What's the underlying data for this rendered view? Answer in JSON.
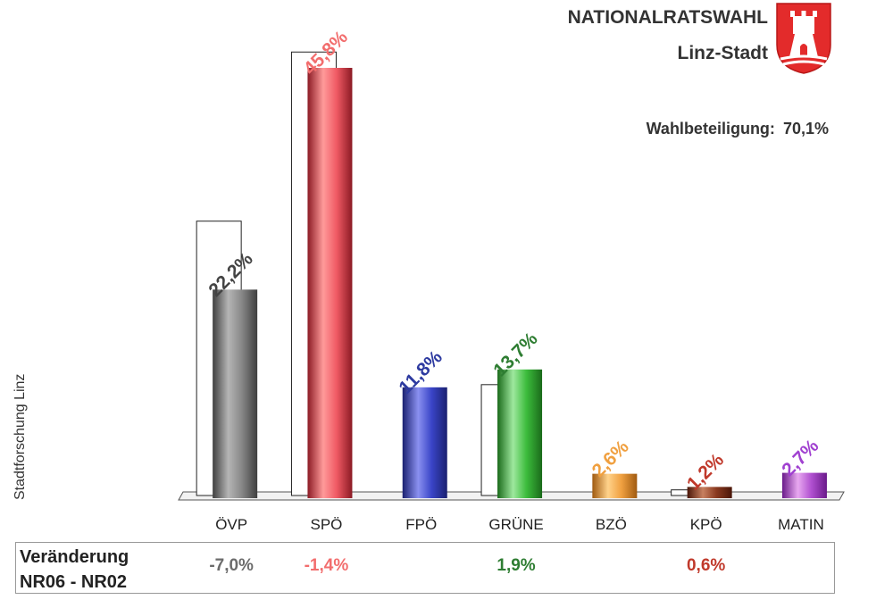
{
  "header": {
    "title": "NATIONALRATSWAHL",
    "subtitle": "Linz-Stadt",
    "turnout_label": "Wahlbeteiligung:",
    "turnout_value": "70,1%"
  },
  "source_label": "Stadtforschung Linz",
  "change": {
    "label_line1": "Veränderung",
    "label_line2": "NR06 - NR02",
    "values": [
      {
        "party": "ÖVP",
        "text": "-7,0%",
        "color": "#6b6b6b"
      },
      {
        "party": "SPÖ",
        "text": "-1,4%",
        "color": "#f26d6d"
      },
      {
        "party": "FPÖ",
        "text": "",
        "color": "#2d3aa0"
      },
      {
        "party": "GRÜNE",
        "text": "1,9%",
        "color": "#2e7d32"
      },
      {
        "party": "BZÖ",
        "text": "",
        "color": "#f0a040"
      },
      {
        "party": "KPÖ",
        "text": "0,6%",
        "color": "#c0392b"
      },
      {
        "party": "MATIN",
        "text": "",
        "color": "#a040d0"
      }
    ]
  },
  "chart_data": {
    "type": "bar",
    "categories": [
      "ÖVP",
      "SPÖ",
      "FPÖ",
      "GRÜNE",
      "BZÖ",
      "KPÖ",
      "MATIN"
    ],
    "series": [
      {
        "values": [
          22.2,
          45.8,
          11.8,
          13.7,
          2.6,
          1.2,
          2.7
        ]
      },
      {
        "values": [
          29.2,
          47.2,
          null,
          11.8,
          null,
          0.6,
          null
        ]
      }
    ],
    "value_labels": [
      "22,2%",
      "45,8%",
      "11,8%",
      "13,7%",
      "2,6%",
      "1,2%",
      "2,7%"
    ],
    "colors": [
      {
        "light": "#b5b5b5",
        "mid": "#888888",
        "dark": "#3f3f3f",
        "label": "#444444"
      },
      {
        "light": "#ff9a9a",
        "mid": "#f05a64",
        "dark": "#8b1a24",
        "label": "#f26d6d"
      },
      {
        "light": "#8a90f0",
        "mid": "#3a45c8",
        "dark": "#1a2070",
        "label": "#2d3aa0"
      },
      {
        "light": "#9ee89e",
        "mid": "#3cbc3c",
        "dark": "#1a6a1a",
        "label": "#2e7d32"
      },
      {
        "light": "#ffd28a",
        "mid": "#f0a040",
        "dark": "#a05a10",
        "label": "#f0a040"
      },
      {
        "light": "#c88060",
        "mid": "#8a3a20",
        "dark": "#4a1608",
        "label": "#c0392b"
      },
      {
        "light": "#e8a8f0",
        "mid": "#b050d0",
        "dark": "#6a1a8a",
        "label": "#a040d0"
      }
    ],
    "ylim": [
      0,
      50
    ],
    "grid": false,
    "legend": "none"
  }
}
